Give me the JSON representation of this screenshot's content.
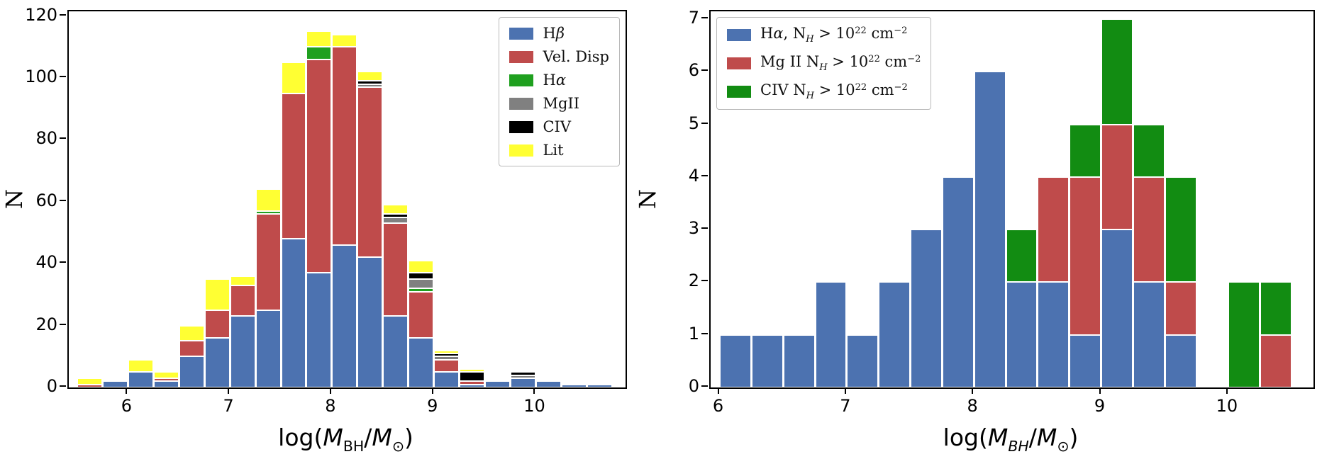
{
  "figure": {
    "background": "#ffffff"
  },
  "chart_data": [
    {
      "type": "bar",
      "stacked": true,
      "panel": "left",
      "title": "",
      "ylabel": "N",
      "xlabel_text": "log(M_BH/M_sun)",
      "xlabel_segments": [
        {
          "t": "log("
        },
        {
          "t": "M",
          "s": "i"
        },
        {
          "t": "BH",
          "s": "sub"
        },
        {
          "t": "/"
        },
        {
          "t": "M",
          "s": "i"
        },
        {
          "t": "⊙",
          "s": "sub"
        },
        {
          "t": ")"
        }
      ],
      "bin_width": 0.25,
      "bin_left_edges": [
        5.5,
        5.75,
        6.0,
        6.25,
        6.5,
        6.75,
        7.0,
        7.25,
        7.5,
        7.75,
        8.0,
        8.25,
        8.5,
        8.75,
        9.0,
        9.25,
        9.5,
        9.75,
        10.0,
        10.25,
        10.5
      ],
      "series": [
        {
          "name": "Hβ",
          "color": "#4c72b0",
          "label_segments": [
            {
              "t": "H"
            },
            {
              "t": "β",
              "s": "i"
            }
          ],
          "values": [
            0,
            2,
            5,
            2,
            10,
            16,
            23,
            25,
            48,
            37,
            46,
            42,
            23,
            16,
            5,
            1,
            2,
            3,
            2,
            1,
            1
          ]
        },
        {
          "name": "Vel. Disp",
          "color": "#bf4b4b",
          "label_segments": [
            {
              "t": "Vel. Disp"
            }
          ],
          "values": [
            1,
            0,
            0,
            1,
            5,
            9,
            10,
            31,
            47,
            69,
            64,
            55,
            30,
            15,
            4,
            1,
            0,
            0,
            0,
            0,
            0
          ]
        },
        {
          "name": "Hα",
          "color": "#1fa01f",
          "label_segments": [
            {
              "t": "H"
            },
            {
              "t": "α",
              "s": "i"
            }
          ],
          "values": [
            0,
            0,
            0,
            0,
            0,
            0,
            0,
            1,
            0,
            4,
            0,
            0,
            0,
            1,
            0,
            0,
            0,
            0,
            0,
            0,
            0
          ]
        },
        {
          "name": "MgII",
          "color": "#808080",
          "label_segments": [
            {
              "t": "MgII"
            }
          ],
          "values": [
            0,
            0,
            0,
            0,
            0,
            0,
            0,
            0,
            0,
            0,
            0,
            1,
            2,
            3,
            1,
            0,
            0,
            1,
            0,
            0,
            0
          ]
        },
        {
          "name": "CIV",
          "color": "#000000",
          "label_segments": [
            {
              "t": "CIV"
            }
          ],
          "values": [
            0,
            0,
            0,
            0,
            0,
            0,
            0,
            0,
            0,
            0,
            0,
            1,
            1,
            2,
            1,
            3,
            0,
            1,
            0,
            0,
            0
          ]
        },
        {
          "name": "Lit",
          "color": "#ffff33",
          "label_segments": [
            {
              "t": "Lit"
            }
          ],
          "values": [
            2,
            0,
            4,
            2,
            5,
            10,
            3,
            7,
            10,
            5,
            4,
            3,
            3,
            4,
            1,
            1,
            0,
            0,
            0,
            0,
            0
          ]
        }
      ],
      "xlim": [
        5.42,
        10.88
      ],
      "ylim": [
        0,
        121.5
      ],
      "xticks": [
        6,
        7,
        8,
        9,
        10
      ],
      "yticks": [
        0,
        20,
        40,
        60,
        80,
        100,
        120
      ],
      "legend_position": "top-right",
      "grid": false
    },
    {
      "type": "bar",
      "stacked": true,
      "panel": "right",
      "title": "",
      "ylabel": "N",
      "xlabel_text": "log(M_BH/M_sun)",
      "xlabel_segments": [
        {
          "t": "log("
        },
        {
          "t": "M",
          "s": "i"
        },
        {
          "t": "BH",
          "s": "subi"
        },
        {
          "t": "/"
        },
        {
          "t": "M",
          "s": "i"
        },
        {
          "t": "⊙",
          "s": "sub"
        },
        {
          "t": ")"
        }
      ],
      "bin_width": 0.25,
      "bin_left_edges": [
        6.0,
        6.25,
        6.5,
        6.75,
        7.0,
        7.25,
        7.5,
        7.75,
        8.0,
        8.25,
        8.5,
        8.75,
        9.0,
        9.25,
        9.5,
        9.75,
        10.0,
        10.25
      ],
      "series": [
        {
          "name": "Hα, N_H > 10^22 cm^-2",
          "color": "#4c72b0",
          "label_segments": [
            {
              "t": "H"
            },
            {
              "t": "α",
              "s": "i"
            },
            {
              "t": ", N"
            },
            {
              "t": "H",
              "s": "subi"
            },
            {
              "t": " > 10"
            },
            {
              "t": "22",
              "s": "sup"
            },
            {
              "t": " cm"
            },
            {
              "t": "−2",
              "s": "sup"
            }
          ],
          "values": [
            1,
            1,
            1,
            2,
            1,
            2,
            3,
            4,
            6,
            2,
            2,
            1,
            3,
            2,
            1,
            0,
            0,
            0
          ]
        },
        {
          "name": "Mg II N_H > 10^22 cm^-2",
          "color": "#bf4b4b",
          "label_segments": [
            {
              "t": "Mg II N"
            },
            {
              "t": "H",
              "s": "subi"
            },
            {
              "t": " > 10"
            },
            {
              "t": "22",
              "s": "sup"
            },
            {
              "t": " cm"
            },
            {
              "t": "−2",
              "s": "sup"
            }
          ],
          "values": [
            0,
            0,
            0,
            0,
            0,
            0,
            0,
            0,
            0,
            0,
            2,
            3,
            2,
            2,
            1,
            0,
            0,
            1
          ]
        },
        {
          "name": "CIV N_H > 10^22 cm^-2",
          "color": "#128c12",
          "label_segments": [
            {
              "t": "CIV N"
            },
            {
              "t": "H",
              "s": "subi"
            },
            {
              "t": " > 10"
            },
            {
              "t": "22",
              "s": "sup"
            },
            {
              "t": " cm"
            },
            {
              "t": "−2",
              "s": "sup"
            }
          ],
          "values": [
            0,
            0,
            0,
            0,
            0,
            0,
            0,
            0,
            0,
            1,
            0,
            1,
            2,
            1,
            2,
            0,
            2,
            1
          ]
        }
      ],
      "xlim": [
        5.93,
        10.67
      ],
      "ylim": [
        0,
        7.15
      ],
      "xticks": [
        6,
        7,
        8,
        9,
        10
      ],
      "yticks": [
        0,
        1,
        2,
        3,
        4,
        5,
        6,
        7
      ],
      "legend_position": "top-left",
      "grid": false
    }
  ]
}
